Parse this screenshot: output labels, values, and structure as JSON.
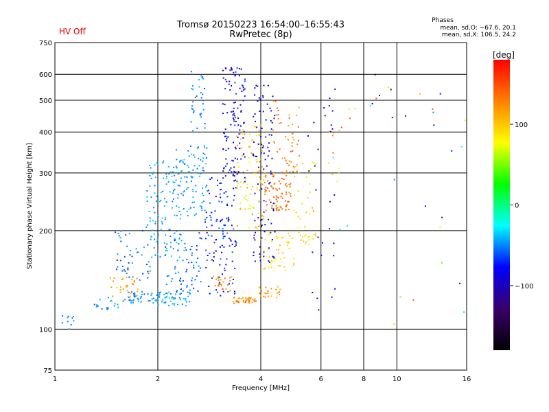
{
  "chart_data": {
    "type": "scatter",
    "status_label": "HV Off",
    "title": "Tromsø 20150223 16:54:00–16:55:43",
    "subtitle": "RwPretec (8p)",
    "stats": {
      "heading": "Phases",
      "line1": "mean, sd,O: −67.6, 20.1",
      "line2": "mean, sd,X: 106.5, 24.2"
    },
    "xlabel": "Frequency [MHz]",
    "ylabel": "Stationary phase Virtual Height [km]",
    "x_scale": "log",
    "y_scale": "log",
    "xlim": [
      1,
      16
    ],
    "ylim": [
      75,
      750
    ],
    "grid": true,
    "x_ticks": [
      {
        "value": 1,
        "label": "1"
      },
      {
        "value": 2,
        "label": "2"
      },
      {
        "value": 4,
        "label": "4"
      },
      {
        "value": 6,
        "label": "6"
      },
      {
        "value": 8,
        "label": "8"
      },
      {
        "value": 10,
        "label": "10"
      },
      {
        "value": 16,
        "label": "16"
      }
    ],
    "y_ticks": [
      {
        "value": 75,
        "label": "75"
      },
      {
        "value": 100,
        "label": "100"
      },
      {
        "value": 200,
        "label": "200"
      },
      {
        "value": 300,
        "label": "300"
      },
      {
        "value": 400,
        "label": "400"
      },
      {
        "value": 500,
        "label": "500"
      },
      {
        "value": 600,
        "label": "600"
      },
      {
        "value": 750,
        "label": "750"
      }
    ],
    "colorbar": {
      "label": "[deg]",
      "range": [
        -180,
        180
      ],
      "ticks": [
        {
          "value": 100,
          "label": "100"
        },
        {
          "value": 0,
          "label": "0"
        },
        {
          "value": -100,
          "label": "−100"
        }
      ],
      "colors": [
        "#000000",
        "#3a006a",
        "#0000ff",
        "#00ffff",
        "#00ff00",
        "#ffff00",
        "#ff8000",
        "#ff0000"
      ]
    },
    "clusters": [
      {
        "f": [
          1.05,
          1.15
        ],
        "h": [
          100,
          110
        ],
        "phase": [
          -55,
          -40
        ],
        "n": 10
      },
      {
        "f": [
          1.3,
          1.6
        ],
        "h": [
          115,
          125
        ],
        "phase": [
          -60,
          -40
        ],
        "n": 18
      },
      {
        "f": [
          1.45,
          1.75
        ],
        "h": [
          125,
          145
        ],
        "phase": [
          100,
          130
        ],
        "n": 30
      },
      {
        "f": [
          1.5,
          1.9
        ],
        "h": [
          140,
          200
        ],
        "phase": [
          -70,
          -40
        ],
        "n": 45
      },
      {
        "f": [
          1.6,
          2.0
        ],
        "h": [
          120,
          130
        ],
        "phase": [
          -60,
          -40
        ],
        "n": 40
      },
      {
        "f": [
          1.85,
          2.35
        ],
        "h": [
          165,
          330
        ],
        "phase": [
          -55,
          -30
        ],
        "n": 110
      },
      {
        "f": [
          2.0,
          2.5
        ],
        "h": [
          118,
          130
        ],
        "phase": [
          -55,
          -35
        ],
        "n": 50
      },
      {
        "f": [
          2.2,
          2.8
        ],
        "h": [
          220,
          370
        ],
        "phase": [
          -55,
          -35
        ],
        "n": 100
      },
      {
        "f": [
          2.1,
          2.7
        ],
        "h": [
          130,
          200
        ],
        "phase": [
          -70,
          -40
        ],
        "n": 70
      },
      {
        "f": [
          2.5,
          2.75
        ],
        "h": [
          400,
          620
        ],
        "phase": [
          -60,
          -40
        ],
        "n": 35
      },
      {
        "f": [
          2.75,
          3.4
        ],
        "h": [
          125,
          290
        ],
        "phase": [
          -90,
          -50
        ],
        "n": 120
      },
      {
        "f": [
          2.9,
          3.3
        ],
        "h": [
          130,
          145
        ],
        "phase": [
          110,
          140
        ],
        "n": 25
      },
      {
        "f": [
          3.1,
          3.6
        ],
        "h": [
          280,
          630
        ],
        "phase": [
          -110,
          -60
        ],
        "n": 120
      },
      {
        "f": [
          3.3,
          3.9
        ],
        "h": [
          120,
          125
        ],
        "phase": [
          110,
          140
        ],
        "n": 40
      },
      {
        "f": [
          3.4,
          4.1
        ],
        "h": [
          200,
          420
        ],
        "phase": [
          60,
          130
        ],
        "n": 90
      },
      {
        "f": [
          3.8,
          4.4
        ],
        "h": [
          160,
          560
        ],
        "phase": [
          -120,
          -70
        ],
        "n": 100
      },
      {
        "f": [
          3.9,
          4.6
        ],
        "h": [
          125,
          135
        ],
        "phase": [
          100,
          130
        ],
        "n": 25
      },
      {
        "f": [
          4.1,
          4.9
        ],
        "h": [
          230,
          300
        ],
        "phase": [
          120,
          150
        ],
        "n": 80
      },
      {
        "f": [
          4.0,
          5.0
        ],
        "h": [
          150,
          200
        ],
        "phase": [
          70,
          110
        ],
        "n": 50
      },
      {
        "f": [
          4.3,
          5.2
        ],
        "h": [
          300,
          500
        ],
        "phase": [
          110,
          150
        ],
        "n": 50
      },
      {
        "f": [
          5.0,
          5.8
        ],
        "h": [
          180,
          330
        ],
        "phase": [
          80,
          110
        ],
        "n": 45
      },
      {
        "f": [
          5.5,
          6.6
        ],
        "h": [
          110,
          600
        ],
        "phase": [
          -110,
          -70
        ],
        "n": 28
      },
      {
        "f": [
          6.3,
          7.0
        ],
        "h": [
          280,
          420
        ],
        "phase": [
          80,
          150
        ],
        "n": 10
      },
      {
        "f": [
          6.5,
          16
        ],
        "h": [
          95,
          600
        ],
        "phase": [
          -160,
          150
        ],
        "n": 35
      }
    ]
  }
}
